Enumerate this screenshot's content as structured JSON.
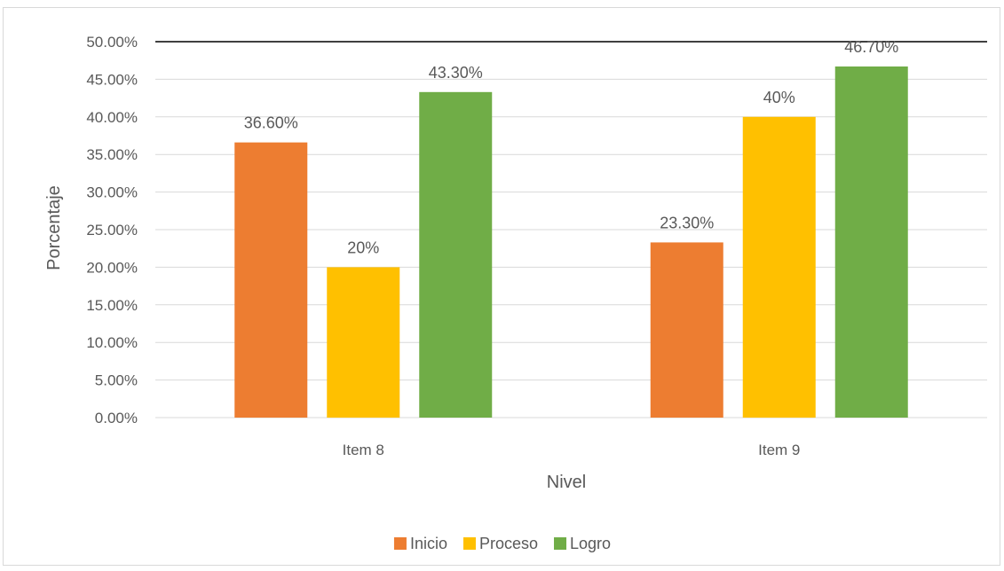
{
  "chart_data": {
    "type": "bar",
    "title": "",
    "xlabel": "Nivel",
    "ylabel": "Porcentaje",
    "categories": [
      "Item 8",
      "Item 9"
    ],
    "series": [
      {
        "name": "Inicio",
        "color": "#ED7D31",
        "values": [
          36.6,
          23.3
        ],
        "labels": [
          "36.60%",
          "23.30%"
        ]
      },
      {
        "name": "Proceso",
        "color": "#FFC000",
        "values": [
          20,
          40
        ],
        "labels": [
          "20%",
          "40%"
        ]
      },
      {
        "name": "Logro",
        "color": "#70AD47",
        "values": [
          43.3,
          46.7
        ],
        "labels": [
          "43.30%",
          "46.70%"
        ]
      }
    ],
    "ylim": [
      0,
      50
    ],
    "yticks": [
      "0.00%",
      "5.00%",
      "10.00%",
      "15.00%",
      "20.00%",
      "25.00%",
      "30.00%",
      "35.00%",
      "40.00%",
      "45.00%",
      "50.00%"
    ],
    "grid": true,
    "legend": "bottom"
  }
}
